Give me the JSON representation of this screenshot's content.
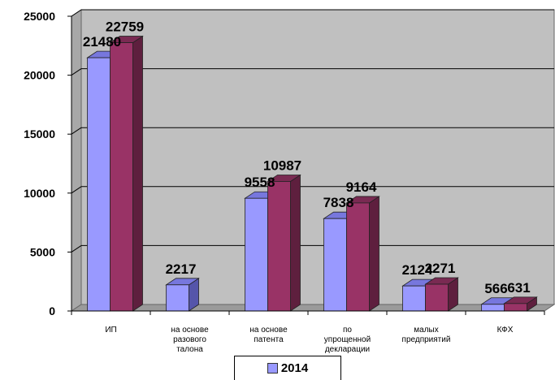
{
  "chart_data": {
    "type": "bar",
    "categories": [
      [
        "ИП"
      ],
      [
        "на основе",
        "разового",
        "талона"
      ],
      [
        "на основе",
        "патента"
      ],
      [
        "по",
        "упрощенной",
        "декларации"
      ],
      [
        "малых",
        "предприятий"
      ],
      [
        "КФХ"
      ]
    ],
    "series": [
      {
        "name": "2014",
        "color": "#9999ff",
        "top_color": "#7777dd",
        "side_color": "#5555aa",
        "values": [
          21480,
          2217,
          9558,
          7838,
          2124,
          566
        ],
        "labels": [
          "21480",
          "2217",
          "9558",
          "7838",
          "2124",
          "566"
        ]
      },
      {
        "color": "#993366",
        "top_color": "#7a2a52",
        "side_color": "#5e1f3e",
        "values": [
          22759,
          null,
          10987,
          9164,
          2271,
          631
        ],
        "labels": [
          "22759",
          "",
          "10987",
          "9164",
          "2271",
          "631"
        ]
      }
    ],
    "y_ticks": [
      "0",
      "5000",
      "10000",
      "15000",
      "20000",
      "25000"
    ],
    "ylim": [
      0,
      25000
    ],
    "grid": true,
    "legend": {
      "position": "bottom",
      "entries": [
        "2014"
      ]
    },
    "plot_background": "#c0c0c0",
    "wall_color": "#a8a8a8"
  }
}
